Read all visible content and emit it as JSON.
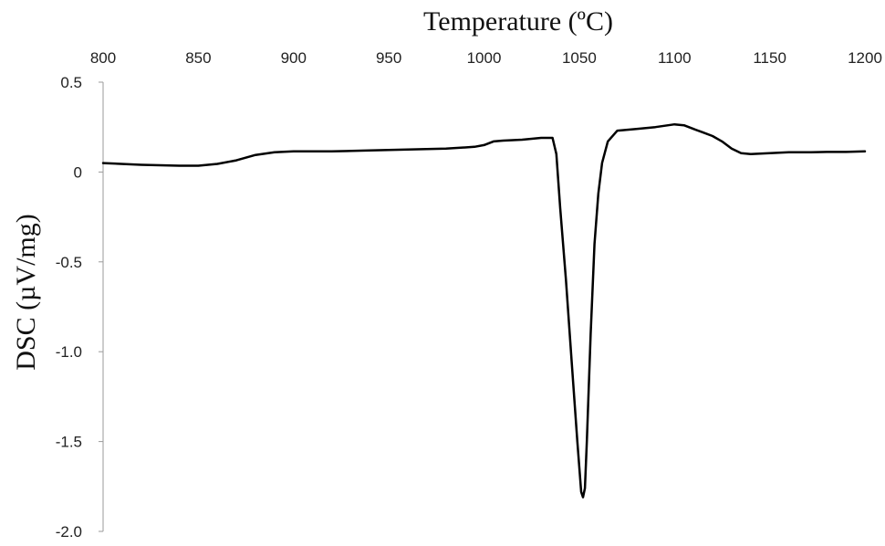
{
  "chart_data": {
    "type": "line",
    "title": "",
    "xlabel": "Temperature (ºC)",
    "ylabel": "DSC (µV/mg)",
    "x_axis_position": "top",
    "xlim": [
      800,
      1200
    ],
    "ylim": [
      -2.0,
      0.5
    ],
    "xticks": [
      800,
      850,
      900,
      950,
      1000,
      1050,
      1100,
      1150,
      1200
    ],
    "xtick_labels": [
      "800",
      "850",
      "900",
      "950",
      "1000",
      "1050",
      "1100",
      "1150",
      "1200"
    ],
    "yticks": [
      0.5,
      0,
      -0.5,
      -1.0,
      -1.5,
      -2.0
    ],
    "ytick_labels": [
      "0.5",
      "0",
      "-0.5",
      "-1.0",
      "-1.5",
      "-2.0"
    ],
    "grid": false,
    "legend": "none",
    "series": [
      {
        "color": "#000000",
        "x": [
          800,
          820,
          840,
          850,
          860,
          870,
          880,
          890,
          900,
          920,
          940,
          960,
          980,
          995,
          1000,
          1005,
          1010,
          1020,
          1030,
          1036,
          1038,
          1040,
          1043,
          1046,
          1049,
          1051,
          1052,
          1053,
          1054,
          1055,
          1056,
          1057,
          1058,
          1060,
          1062,
          1065,
          1070,
          1080,
          1090,
          1100,
          1105,
          1110,
          1115,
          1120,
          1125,
          1130,
          1135,
          1140,
          1150,
          1160,
          1170,
          1180,
          1190,
          1200
        ],
        "y": [
          0.05,
          0.04,
          0.035,
          0.035,
          0.045,
          0.065,
          0.095,
          0.11,
          0.115,
          0.115,
          0.12,
          0.125,
          0.13,
          0.14,
          0.15,
          0.17,
          0.175,
          0.18,
          0.19,
          0.19,
          0.1,
          -0.2,
          -0.6,
          -1.05,
          -1.5,
          -1.78,
          -1.81,
          -1.76,
          -1.5,
          -1.2,
          -0.9,
          -0.65,
          -0.4,
          -0.12,
          0.05,
          0.17,
          0.23,
          0.24,
          0.25,
          0.265,
          0.26,
          0.24,
          0.22,
          0.2,
          0.17,
          0.13,
          0.105,
          0.1,
          0.105,
          0.11,
          0.11,
          0.112,
          0.112,
          0.115
        ]
      }
    ]
  }
}
